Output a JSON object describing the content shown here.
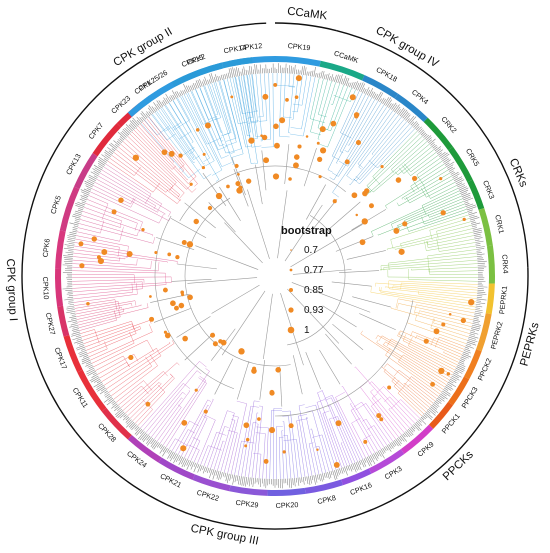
{
  "legend": {
    "title": "bootstrap",
    "items": [
      {
        "label": "0.7"
      },
      {
        "label": "0.77"
      },
      {
        "label": "0.85"
      },
      {
        "label": "0.93"
      },
      {
        "label": "1"
      }
    ],
    "marker_color": "#f08a24"
  },
  "clades": [
    {
      "label": "CPK15",
      "color": "#2f9be0"
    },
    {
      "label": "CPK12",
      "color": "#2f9be0"
    },
    {
      "label": "CPK19",
      "color": "#2f9be0"
    },
    {
      "label": "CCaMK",
      "color": "#1aa887"
    },
    {
      "label": "CPK18",
      "color": "#2a86c8"
    },
    {
      "label": "CPK4",
      "color": "#2a86c8"
    },
    {
      "label": "CRK2",
      "color": "#1e9a3a"
    },
    {
      "label": "CRK5",
      "color": "#1e9a3a"
    },
    {
      "label": "CRK3",
      "color": "#1e9a3a"
    },
    {
      "label": "CRK1",
      "color": "#7bc042"
    },
    {
      "label": "CRK4",
      "color": "#7bc042"
    },
    {
      "label": "PEPRK1",
      "color": "#f2c230"
    },
    {
      "label": "PEPRK2",
      "color": "#f0a030"
    },
    {
      "label": "PPCK2",
      "color": "#f07f20"
    },
    {
      "label": "PPCK3",
      "color": "#ec6f1a"
    },
    {
      "label": "PPCK1",
      "color": "#e85a1a"
    },
    {
      "label": "CPK9",
      "color": "#d23ec8"
    },
    {
      "label": "CPK3",
      "color": "#b54ad8"
    },
    {
      "label": "CPK16",
      "color": "#9050e0"
    },
    {
      "label": "CPK8",
      "color": "#7a5ae0"
    },
    {
      "label": "CPK20",
      "color": "#7060e0"
    },
    {
      "label": "CPK29",
      "color": "#8a58d8"
    },
    {
      "label": "CPK22",
      "color": "#9a50d0"
    },
    {
      "label": "CPK21",
      "color": "#a048c8"
    },
    {
      "label": "CPK24",
      "color": "#b040b8"
    },
    {
      "label": "CPK28",
      "color": "#e0304a"
    },
    {
      "label": "CPK11",
      "color": "#e8303a"
    },
    {
      "label": "CPK17",
      "color": "#e8303a"
    },
    {
      "label": "CPK27",
      "color": "#d83468"
    },
    {
      "label": "CPK10",
      "color": "#d8367a"
    },
    {
      "label": "CPK6",
      "color": "#d8387e"
    },
    {
      "label": "CPK5",
      "color": "#cf3a82"
    },
    {
      "label": "CPK13",
      "color": "#c83c88"
    },
    {
      "label": "CPK7",
      "color": "#e02a3c"
    },
    {
      "label": "CPK23",
      "color": "#e02a3c"
    },
    {
      "label": "CPK25/26",
      "color": "#2a9ad8"
    },
    {
      "label": "CPK2",
      "color": "#2a9ad8"
    },
    {
      "label": "CPK14",
      "color": "#2a9ad8"
    },
    {
      "label": "CPK1",
      "color": "#2f9be0"
    }
  ],
  "groups": [
    {
      "label": "CPK group II"
    },
    {
      "label": "CCaMK"
    },
    {
      "label": "CPK group IV"
    },
    {
      "label": "CRKs"
    },
    {
      "label": "PEPRKs"
    },
    {
      "label": "PPCKs"
    },
    {
      "label": "CPK group III"
    },
    {
      "label": "CPK group I"
    }
  ]
}
